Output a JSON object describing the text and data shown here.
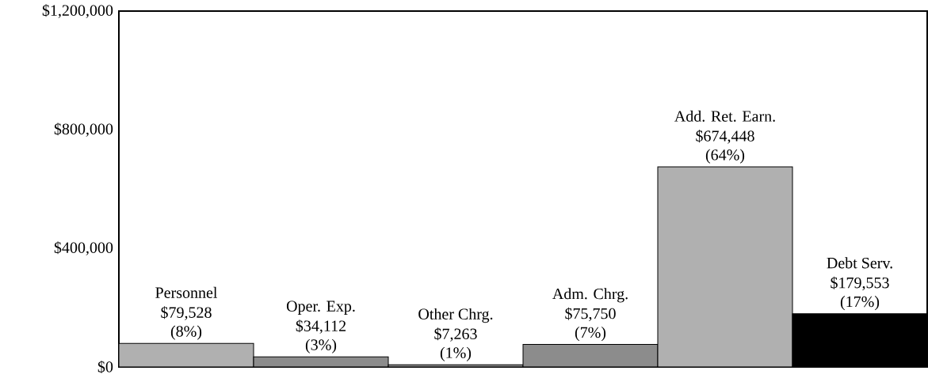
{
  "chart_data": {
    "type": "bar",
    "categories": [
      "Personnel",
      "Oper. Exp.",
      "Other Chrg.",
      "Adm. Chrg.",
      "Add. Ret. Earn.",
      "Debt Serv."
    ],
    "values": [
      79528,
      34112,
      7263,
      75750,
      674448,
      179553
    ],
    "value_labels": [
      "$79,528",
      "$34,112",
      "$7,263",
      "$75,750",
      "$674,448",
      "$179,553"
    ],
    "colors": [
      "#b0b0b0",
      "#8c8c8c",
      "#8c8c8c",
      "#8c8c8c",
      "#b0b0b0",
      "#000000"
    ],
    "annotations": [
      {
        "text": "(8%)",
        "x": "Personnel",
        "y": 79528
      },
      {
        "text": "(3%)",
        "x": "Oper. Exp.",
        "y": 34112
      },
      {
        "text": "(1%)",
        "x": "Other Chrg.",
        "y": 7263
      },
      {
        "text": "(7%)",
        "x": "Adm. Chrg.",
        "y": 75750
      },
      {
        "text": "(64%)",
        "x": "Add. Ret. Earn.",
        "y": 674448
      },
      {
        "text": "(17%)",
        "x": "Debt Serv.",
        "y": 179553
      }
    ],
    "ylim": [
      0,
      1200000
    ],
    "yticks": [
      {
        "value": 0,
        "label": "$0"
      },
      {
        "value": 400000,
        "label": "$400,000"
      },
      {
        "value": 800000,
        "label": "$800,000"
      },
      {
        "value": 1200000,
        "label": "$1,200,000"
      }
    ],
    "orientation": "vertical"
  }
}
